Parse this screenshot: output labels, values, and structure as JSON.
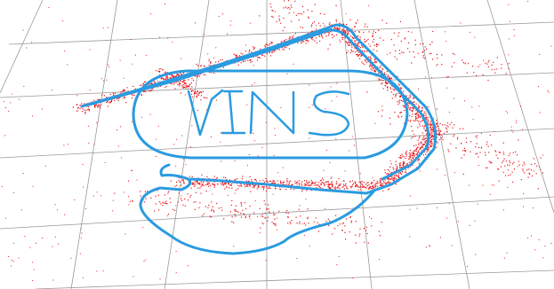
{
  "scene": {
    "background_color": "#ffffff",
    "grid_color": "#9a9a9a",
    "trajectory_color": "#2a9be0",
    "point_cloud_color": "#e8161b",
    "handwritten_text": "VINS"
  }
}
